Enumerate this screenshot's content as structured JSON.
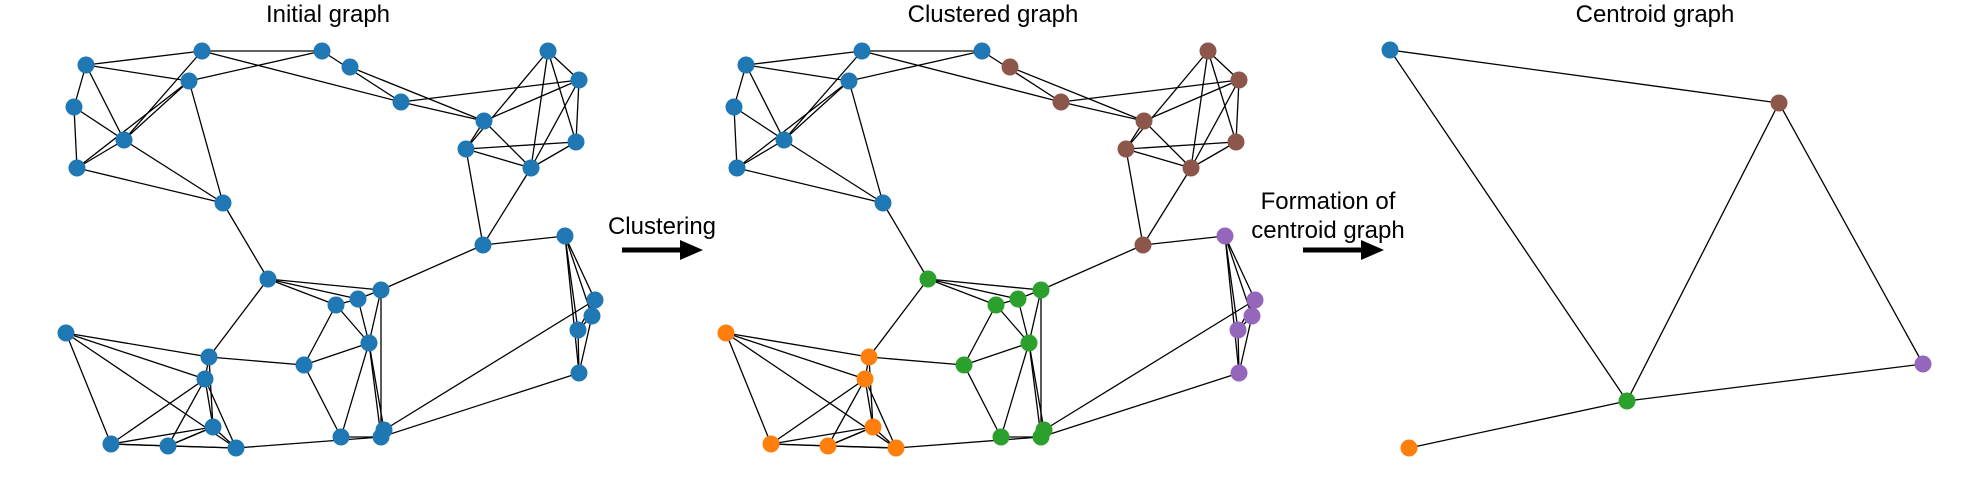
{
  "panels": {
    "initial": {
      "title": "Initial graph"
    },
    "clustered": {
      "title": "Clustered graph"
    },
    "centroid": {
      "title": "Centroid graph"
    }
  },
  "arrows": {
    "clustering": {
      "label": "Clustering"
    },
    "formation": {
      "label_line1": "Formation of",
      "label_line2": "centroid graph"
    }
  },
  "colors": {
    "node_default": "#1f77b4",
    "cluster_blue": "#1f77b4",
    "cluster_brown": "#8c564b",
    "cluster_green": "#2ca02c",
    "cluster_orange": "#ff7f0e",
    "cluster_purple": "#9467bd"
  },
  "clusters": [
    "cluster_blue",
    "cluster_brown",
    "cluster_green",
    "cluster_orange",
    "cluster_purple"
  ]
}
